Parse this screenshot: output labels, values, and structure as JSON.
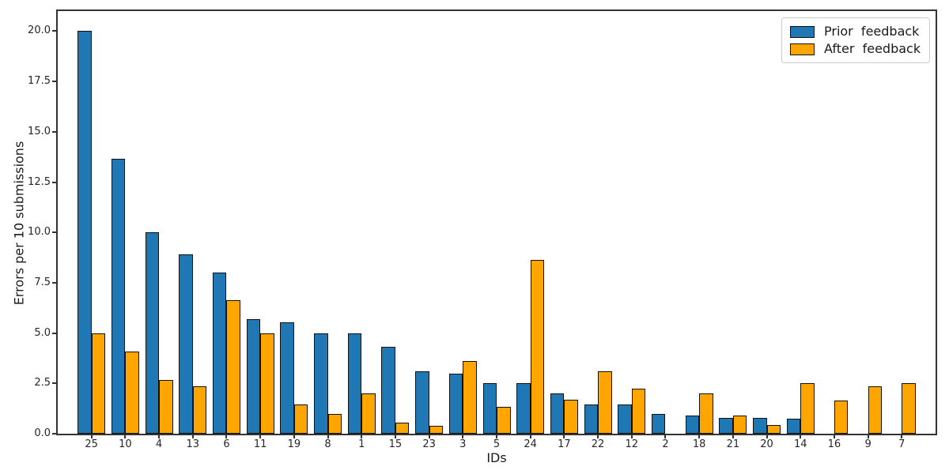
{
  "chart_data": {
    "type": "bar",
    "title": "",
    "xlabel": "IDs",
    "ylabel": "Errors per 10 submissions",
    "categories": [
      "25",
      "10",
      "4",
      "13",
      "6",
      "11",
      "19",
      "8",
      "1",
      "15",
      "23",
      "3",
      "5",
      "24",
      "17",
      "22",
      "12",
      "2",
      "18",
      "21",
      "20",
      "14",
      "16",
      "9",
      "7"
    ],
    "series": [
      {
        "name": "Prior feedback",
        "legend_label": "Prior  feedback",
        "color": "#1f77b4",
        "values": [
          20.0,
          13.65,
          10.0,
          8.9,
          8.0,
          5.7,
          5.55,
          5.0,
          5.0,
          4.3,
          3.1,
          3.0,
          2.5,
          2.5,
          2.0,
          1.45,
          1.45,
          1.0,
          0.9,
          0.8,
          0.8,
          0.75,
          0,
          0,
          0
        ]
      },
      {
        "name": "After feedback",
        "legend_label": "After  feedback",
        "color": "#ffa500",
        "values": [
          5.0,
          4.1,
          2.65,
          2.35,
          6.65,
          5.0,
          1.45,
          1.0,
          2.0,
          0.55,
          0.4,
          3.6,
          1.35,
          8.65,
          1.7,
          3.1,
          2.25,
          0,
          2.0,
          0.9,
          0.45,
          2.5,
          1.65,
          2.35,
          2.5
        ]
      }
    ],
    "ytick_labels": [
      "0.0",
      "2.5",
      "5.0",
      "7.5",
      "10.0",
      "12.5",
      "15.0",
      "17.5",
      "20.0"
    ],
    "ylim": [
      0,
      21
    ],
    "grid": false,
    "legend_position": "upper right",
    "bar_edge_color": "#111111",
    "axis_color": "#333333",
    "background_color": "#ffffff"
  }
}
